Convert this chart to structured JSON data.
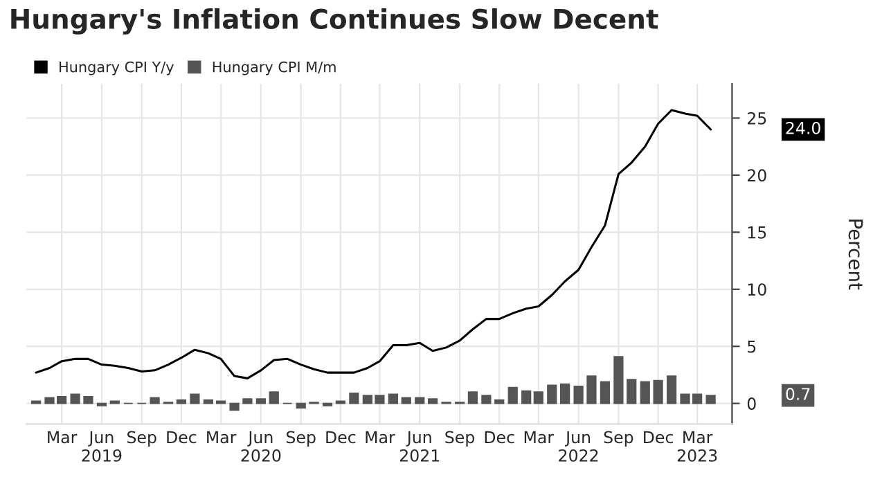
{
  "chart_data": {
    "type": "line",
    "title": "Hungary's Inflation Continues Slow Decent",
    "ylabel": "Percent",
    "x": [
      "2019-01",
      "2019-02",
      "2019-03",
      "2019-04",
      "2019-05",
      "2019-06",
      "2019-07",
      "2019-08",
      "2019-09",
      "2019-10",
      "2019-11",
      "2019-12",
      "2020-01",
      "2020-02",
      "2020-03",
      "2020-04",
      "2020-05",
      "2020-06",
      "2020-07",
      "2020-08",
      "2020-09",
      "2020-10",
      "2020-11",
      "2020-12",
      "2021-01",
      "2021-02",
      "2021-03",
      "2021-04",
      "2021-05",
      "2021-06",
      "2021-07",
      "2021-08",
      "2021-09",
      "2021-10",
      "2021-11",
      "2021-12",
      "2022-01",
      "2022-02",
      "2022-03",
      "2022-04",
      "2022-05",
      "2022-06",
      "2022-07",
      "2022-08",
      "2022-09",
      "2022-10",
      "2022-11",
      "2022-12",
      "2023-01",
      "2023-02",
      "2023-03",
      "2023-04"
    ],
    "series": [
      {
        "name": "Hungary CPI Y/y",
        "color": "#000000",
        "values": [
          2.7,
          3.1,
          3.7,
          3.9,
          3.9,
          3.4,
          3.3,
          3.1,
          2.8,
          2.9,
          3.4,
          4.0,
          4.7,
          4.4,
          3.9,
          2.4,
          2.2,
          2.9,
          3.8,
          3.9,
          3.4,
          3.0,
          2.7,
          2.7,
          2.7,
          3.1,
          3.7,
          5.1,
          5.1,
          5.3,
          4.6,
          4.9,
          5.5,
          6.5,
          7.4,
          7.4,
          7.9,
          8.3,
          8.5,
          9.5,
          10.7,
          11.7,
          13.7,
          15.6,
          20.1,
          21.1,
          22.5,
          24.5,
          25.7,
          25.4,
          25.2,
          24.0
        ]
      },
      {
        "name": "Hungary CPI M/m",
        "type": "bar",
        "color": "#555555",
        "values": [
          0.2,
          0.5,
          0.6,
          0.8,
          0.6,
          -0.2,
          0.2,
          0.0,
          0.0,
          0.5,
          0.1,
          0.3,
          0.8,
          0.3,
          0.2,
          -0.6,
          0.4,
          0.4,
          1.0,
          0.0,
          -0.4,
          0.1,
          -0.2,
          0.2,
          0.9,
          0.7,
          0.7,
          0.8,
          0.5,
          0.5,
          0.4,
          0.1,
          0.1,
          1.0,
          0.7,
          0.3,
          1.4,
          1.1,
          1.0,
          1.6,
          1.7,
          1.5,
          2.4,
          1.9,
          4.1,
          2.1,
          1.9,
          2.0,
          2.4,
          0.8,
          0.8,
          0.7
        ]
      }
    ],
    "annotations": [
      "24.0",
      "0.7"
    ],
    "xlim": [
      "2018-12-10",
      "2023-05-20"
    ],
    "xticks": [
      {
        "value": "2019-03",
        "label": "Mar"
      },
      {
        "value": "2019-06",
        "label": "Jun\n2019"
      },
      {
        "value": "2019-09",
        "label": "Sep"
      },
      {
        "value": "2019-12",
        "label": "Dec"
      },
      {
        "value": "2020-03",
        "label": "Mar"
      },
      {
        "value": "2020-06",
        "label": "Jun\n2020"
      },
      {
        "value": "2020-09",
        "label": "Sep"
      },
      {
        "value": "2020-12",
        "label": "Dec"
      },
      {
        "value": "2021-03",
        "label": "Mar"
      },
      {
        "value": "2021-06",
        "label": "Jun\n2021"
      },
      {
        "value": "2021-09",
        "label": "Sep"
      },
      {
        "value": "2021-12",
        "label": "Dec"
      },
      {
        "value": "2022-03",
        "label": "Mar"
      },
      {
        "value": "2022-06",
        "label": "Jun\n2022"
      },
      {
        "value": "2022-09",
        "label": "Sep"
      },
      {
        "value": "2022-12",
        "label": "Dec"
      },
      {
        "value": "2023-03",
        "label": "Mar\n2023"
      }
    ],
    "ylim": [
      -1.8,
      28
    ],
    "yticks": [
      0,
      5,
      10,
      15,
      20,
      25
    ],
    "grid": true,
    "legend": "top left"
  }
}
